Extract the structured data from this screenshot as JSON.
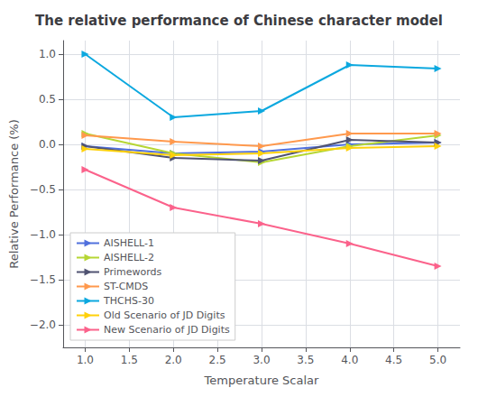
{
  "chart_data": {
    "type": "line",
    "title": "The relative performance of Chinese character model",
    "xlabel": "Temperature Scalar",
    "ylabel": "Relative Performance (%)",
    "x": [
      1.0,
      2.0,
      3.0,
      4.0,
      5.0
    ],
    "series": [
      {
        "name": "AISHELL-1",
        "values": [
          -0.02,
          -0.1,
          -0.08,
          0.0,
          0.02
        ]
      },
      {
        "name": "AISHELL-2",
        "values": [
          0.12,
          -0.1,
          -0.2,
          -0.02,
          0.1
        ]
      },
      {
        "name": "Primewords",
        "values": [
          -0.02,
          -0.15,
          -0.18,
          0.05,
          0.02
        ]
      },
      {
        "name": "ST-CMDS",
        "values": [
          0.1,
          0.03,
          -0.02,
          0.12,
          0.12
        ]
      },
      {
        "name": "THCHS-30",
        "values": [
          1.0,
          0.3,
          0.37,
          0.88,
          0.84
        ]
      },
      {
        "name": "Old Scenario of JD Digits",
        "values": [
          -0.05,
          -0.12,
          -0.1,
          -0.04,
          -0.02
        ]
      },
      {
        "name": "New Scenario of JD Digits",
        "values": [
          -0.28,
          -0.7,
          -0.88,
          -1.1,
          -1.35
        ]
      }
    ],
    "xlim": [
      0.75,
      5.25
    ],
    "ylim": [
      -2.25,
      1.15
    ],
    "xticks": [
      {
        "value": 1.0,
        "label": "1.0"
      },
      {
        "value": 1.5,
        "label": "1.5"
      },
      {
        "value": 2.0,
        "label": "2.0"
      },
      {
        "value": 2.5,
        "label": "2.5"
      },
      {
        "value": 3.0,
        "label": "3.0"
      },
      {
        "value": 3.5,
        "label": "3.5"
      },
      {
        "value": 4.0,
        "label": "4.0"
      },
      {
        "value": 4.5,
        "label": "4.5"
      },
      {
        "value": 5.0,
        "label": "5.0"
      }
    ],
    "yticks": [
      {
        "value": -2.0,
        "label": "−2.0"
      },
      {
        "value": -1.5,
        "label": "−1.5"
      },
      {
        "value": -1.0,
        "label": "−1.0"
      },
      {
        "value": -0.5,
        "label": "−0.5"
      },
      {
        "value": 0.0,
        "label": "0.0"
      },
      {
        "value": 0.5,
        "label": "0.5"
      },
      {
        "value": 1.0,
        "label": "1.0"
      }
    ],
    "grid": true,
    "legend": "lower left",
    "marker": "triangle-right"
  }
}
